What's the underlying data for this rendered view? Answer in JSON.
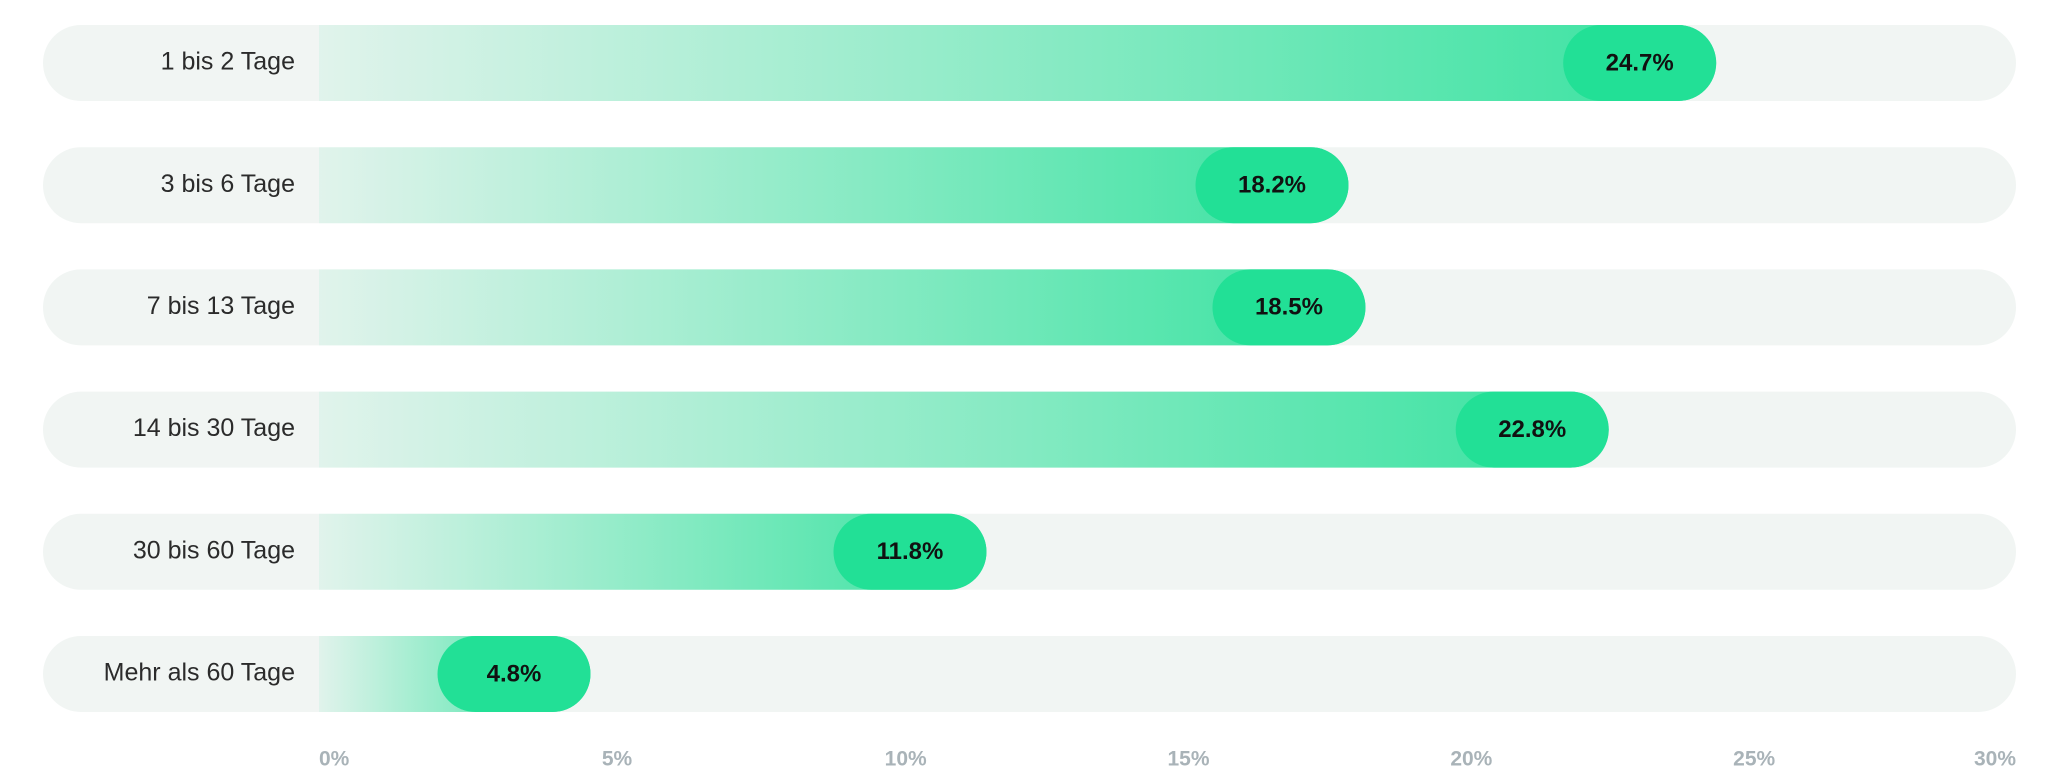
{
  "chart_data": {
    "type": "bar",
    "orientation": "horizontal",
    "categories": [
      "1 bis 2 Tage",
      "3 bis 6 Tage",
      "7 bis 13 Tage",
      "14 bis 30 Tage",
      "30 bis 60 Tage",
      "Mehr als 60 Tage"
    ],
    "values": [
      24.7,
      18.2,
      18.5,
      22.8,
      11.8,
      4.8
    ],
    "value_labels": [
      "24.7%",
      "18.2%",
      "18.5%",
      "22.8%",
      "11.8%",
      "4.8%"
    ],
    "color": "#22e096",
    "xlim": [
      0,
      30
    ],
    "xticks": [
      {
        "value": 0,
        "label": "0%"
      },
      {
        "value": 5,
        "label": "5%"
      },
      {
        "value": 10,
        "label": "10%"
      },
      {
        "value": 15,
        "label": "15%"
      },
      {
        "value": 20,
        "label": "20%"
      },
      {
        "value": 25,
        "label": "25%"
      },
      {
        "value": 30,
        "label": "30%"
      }
    ]
  }
}
